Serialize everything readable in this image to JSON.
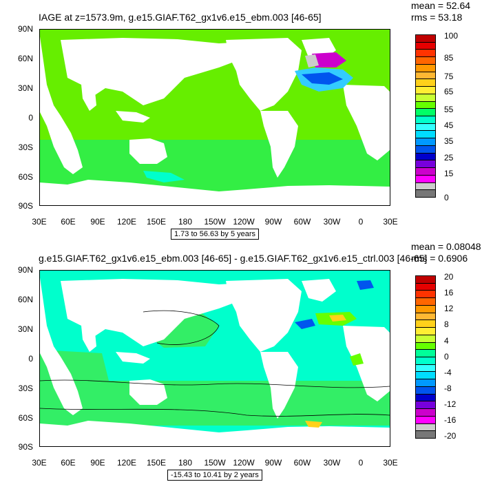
{
  "panels": [
    {
      "title": "IAGE at z=1573.9m, g.e15.GIAF.T62_gx1v6.e15_ebm.003 [46-65]",
      "mean": "mean = 52.64",
      "rms": "rms = 53.18",
      "lat_ticks": [
        "90N",
        "60N",
        "30N",
        "0",
        "30S",
        "60S",
        "90S"
      ],
      "lon_ticks": [
        "30E",
        "60E",
        "90E",
        "120E",
        "150E",
        "180",
        "150W",
        "120W",
        "90W",
        "60W",
        "30W",
        "0",
        "30E"
      ],
      "contour_info": "1.73 to 56.63 by 5 years",
      "colorbar_labels": [
        "100",
        "85",
        "75",
        "65",
        "55",
        "45",
        "35",
        "25",
        "15",
        "0"
      ],
      "colorbar_colors": [
        "#c00000",
        "#e60000",
        "#ff3300",
        "#ff6600",
        "#ff9900",
        "#ffb833",
        "#ffd11a",
        "#ffee33",
        "#c8ff33",
        "#66ff00",
        "#00ff66",
        "#00ffcc",
        "#33ffff",
        "#00ddff",
        "#0099ff",
        "#0055ee",
        "#0000cc",
        "#7700dd",
        "#cc00cc",
        "#ff00ff",
        "#cccccc",
        "#777777"
      ]
    },
    {
      "title": "g.e15.GIAF.T62_gx1v6.e15_ebm.003 [46-65] - g.e15.GIAF.T62_gx1v6.e15_ctrl.003 [46-65]",
      "mean": "mean = 0.08048",
      "rms": "rms = 0.6906",
      "lat_ticks": [
        "90N",
        "60N",
        "30N",
        "0",
        "30S",
        "60S",
        "90S"
      ],
      "lon_ticks": [
        "30E",
        "60E",
        "90E",
        "120E",
        "150E",
        "180",
        "150W",
        "120W",
        "90W",
        "60W",
        "30W",
        "0",
        "30E"
      ],
      "contour_info": "-15.43 to 10.41 by 2 years",
      "colorbar_labels": [
        "20",
        "16",
        "12",
        "8",
        "4",
        "0",
        "-4",
        "-8",
        "-12",
        "-16",
        "-20"
      ],
      "colorbar_colors": [
        "#c00000",
        "#e60000",
        "#ff3300",
        "#ff6600",
        "#ff9900",
        "#ffb833",
        "#ffd11a",
        "#ffee33",
        "#c8ff33",
        "#66ff00",
        "#00ff99",
        "#00ffcc",
        "#33ffff",
        "#00ddff",
        "#0099ff",
        "#0055ee",
        "#0000cc",
        "#7700dd",
        "#cc00cc",
        "#ff00ff",
        "#cccccc",
        "#777777"
      ]
    }
  ],
  "colors": {
    "ocean_main_top": "#66ee00",
    "ocean_alt_top": "#33ee44",
    "ocean_main_bottom": "#33ee66",
    "ocean_alt_bottom": "#00ffcc",
    "land": "#ffffff"
  }
}
